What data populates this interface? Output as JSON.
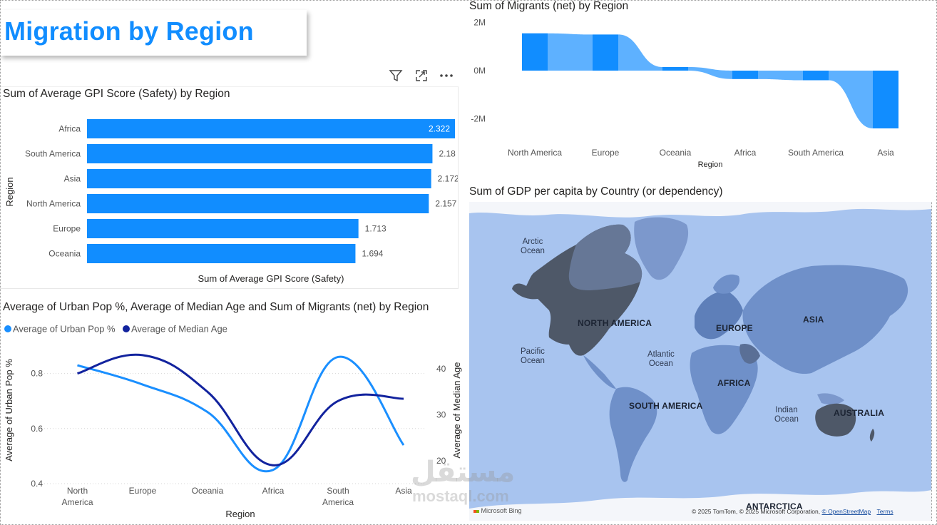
{
  "page": {
    "title": "Migration by Region"
  },
  "header_icons": [
    "filter-icon",
    "focus-mode-icon",
    "more-options-icon"
  ],
  "colors": {
    "accent": "#118dff",
    "accent_light": "#5eb1ff",
    "dark_series": "#12239e",
    "light_series": "#1a8fff",
    "map_water": "#a8c4ef",
    "map_land": "#6f90c9",
    "map_dark": "#4e5868"
  },
  "bar_visual": {
    "title": "Sum of Average GPI Score (Safety) by Region",
    "xlabel": "Sum of Average GPI Score (Safety)",
    "ylabel": "Region"
  },
  "combo_visual": {
    "title": "Average of Urban Pop %, Average of Median Age and Sum of Migrants (net) by Region",
    "legend": [
      "Average of Urban Pop %",
      "Average of Median Age"
    ],
    "xlabel": "Region",
    "ylabel_left": "Average of Urban Pop %",
    "ylabel_right": "Average of Median Age"
  },
  "ribbon_visual": {
    "title": "Sum of Migrants (net) by Region",
    "xlabel": "Region"
  },
  "map_visual": {
    "title": "Sum of GDP per capita by Country (or dependency)",
    "ocean_labels": [
      "Arctic\nOcean",
      "Pacific\nOcean",
      "Atlantic\nOcean",
      "Indian\nOcean"
    ],
    "continent_labels": [
      "NORTH AMERICA",
      "EUROPE",
      "ASIA",
      "AFRICA",
      "SOUTH AMERICA",
      "AUSTRALIA",
      "ANTARCTICA"
    ],
    "bing_label": "Microsoft Bing",
    "attribution_text": "© 2025 TomTom, © 2025 Microsoft Corporation, ",
    "attribution_link": "© OpenStreetMap",
    "terms_link": "Terms"
  },
  "watermark": {
    "arabic": "مستقل",
    "latin": "mostaql.com"
  },
  "chart_data": [
    {
      "type": "bar",
      "orientation": "horizontal",
      "title": "Sum of Average GPI Score (Safety) by Region",
      "xlabel": "Sum of Average GPI Score (Safety)",
      "ylabel": "Region",
      "categories": [
        "Africa",
        "South America",
        "Asia",
        "North America",
        "Europe",
        "Oceania"
      ],
      "values": [
        2.322,
        2.18,
        2.172,
        2.157,
        1.713,
        1.694
      ],
      "data_labels": [
        "2.322",
        "2.18",
        "2.172",
        "2.157",
        "1.713",
        "1.694"
      ],
      "xlim": [
        0,
        2.322
      ],
      "grid": false
    },
    {
      "type": "line",
      "title": "Average of Urban Pop %, Average of Median Age and Sum of Migrants (net) by Region",
      "categories": [
        "North America",
        "Europe",
        "Oceania",
        "Africa",
        "South America",
        "Asia"
      ],
      "category_lines": [
        [
          "North",
          "America"
        ],
        [
          "Europe"
        ],
        [
          "Oceania"
        ],
        [
          "Africa"
        ],
        [
          "South",
          "America"
        ],
        [
          "Asia"
        ]
      ],
      "series": [
        {
          "name": "Average of Urban Pop %",
          "axis": "left",
          "values": [
            0.83,
            0.76,
            0.66,
            0.45,
            0.86,
            0.54
          ]
        },
        {
          "name": "Average of Median Age",
          "axis": "right",
          "values": [
            39.0,
            43.0,
            35.0,
            19.0,
            33.0,
            33.5
          ]
        }
      ],
      "y_left": {
        "label": "Average of Urban Pop %",
        "ticks": [
          "0.4",
          "0.6",
          "0.8"
        ],
        "range": [
          0.4,
          0.9
        ]
      },
      "y_right": {
        "label": "Average of Median Age",
        "ticks": [
          "20",
          "30",
          "40"
        ],
        "range": [
          15,
          45
        ]
      },
      "xlabel": "Region",
      "legend_position": "top-left",
      "grid": true
    },
    {
      "type": "area",
      "variant": "ribbon",
      "title": "Sum of Migrants (net) by Region",
      "categories": [
        "North America",
        "Europe",
        "Oceania",
        "Africa",
        "South America",
        "Asia"
      ],
      "values": [
        1550000,
        1500000,
        150000,
        -350000,
        -400000,
        -2400000
      ],
      "yticks": [
        "2M",
        "0M",
        "-2M"
      ],
      "ylim": [
        -2000000,
        2000000
      ],
      "xlabel": "Region",
      "ylabel": "",
      "grid": false
    }
  ]
}
